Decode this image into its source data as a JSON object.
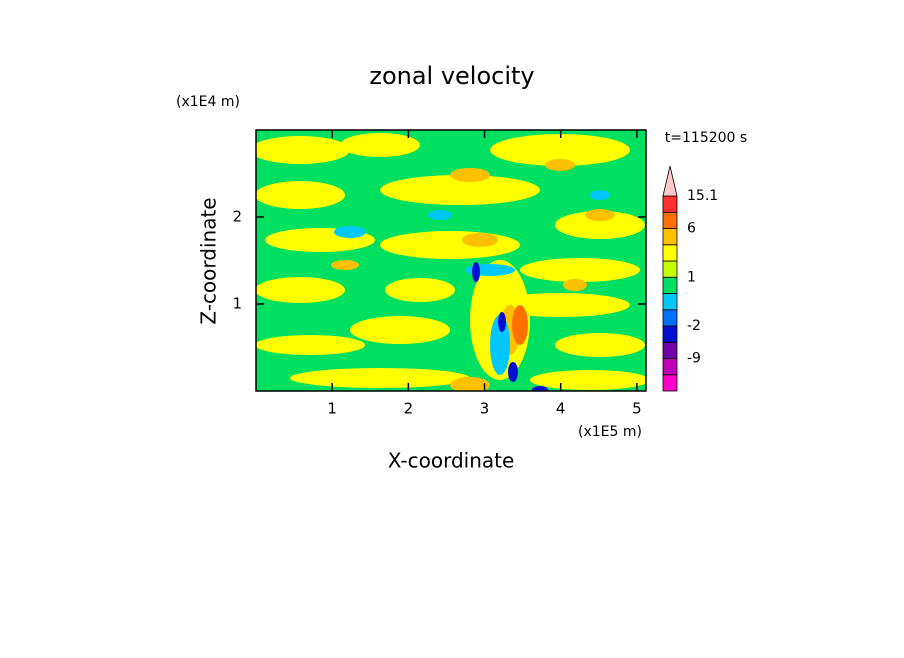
{
  "chart_data": {
    "type": "contour",
    "title": "zonal velocity",
    "x_label": "X-coordinate",
    "y_label": "Z-coordinate",
    "x_unit": "(x1E5 m)",
    "y_unit": "(x1E4 m)",
    "annotation": "t=115200 s",
    "xlim": [
      0,
      5.12
    ],
    "xticks": [
      1,
      2,
      3,
      4,
      5
    ],
    "ylim": [
      0,
      3
    ],
    "yticks": [
      1,
      2
    ],
    "colorbar": {
      "levels": [
        -15,
        -12,
        -9,
        -6,
        -2,
        -1,
        0,
        1,
        2,
        4,
        6,
        10,
        15.1
      ],
      "colors": [
        "#ff00c8",
        "#c000b8",
        "#7000a8",
        "#0010d0",
        "#0070ff",
        "#00c8ff",
        "#00e060",
        "#c8ff00",
        "#ffff00",
        "#ffc000",
        "#ff7000",
        "#ff3030"
      ],
      "extend_color": "#ffc8c8",
      "ticks": [
        -9,
        -2,
        1,
        6,
        15.1
      ]
    }
  }
}
